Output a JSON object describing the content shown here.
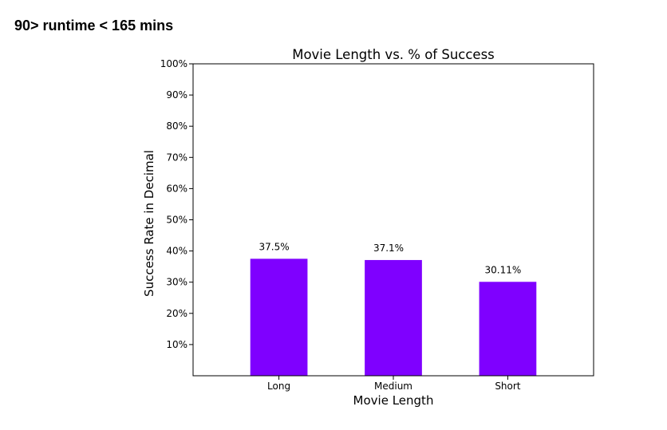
{
  "page": {
    "heading": "90> runtime < 165 mins"
  },
  "chart_data": {
    "type": "bar",
    "title": "Movie Length vs. % of Success",
    "xlabel": "Movie Length",
    "ylabel": "Success Rate in Decimal",
    "categories": [
      "Long",
      "Medium",
      "Short"
    ],
    "values": [
      0.375,
      0.371,
      0.3011
    ],
    "data_labels": [
      "37.5%",
      "37.1%",
      "30.11%"
    ],
    "ylim": [
      0,
      1.0
    ],
    "yticks": [
      0.1,
      0.2,
      0.3,
      0.4,
      0.5,
      0.6,
      0.7,
      0.8,
      0.9,
      1.0
    ],
    "ytick_labels": [
      "10%",
      "20%",
      "30%",
      "40%",
      "50%",
      "60%",
      "70%",
      "80%",
      "90%",
      "100%"
    ],
    "grid": false,
    "legend": "none",
    "bar_color": "#7f00ff"
  }
}
